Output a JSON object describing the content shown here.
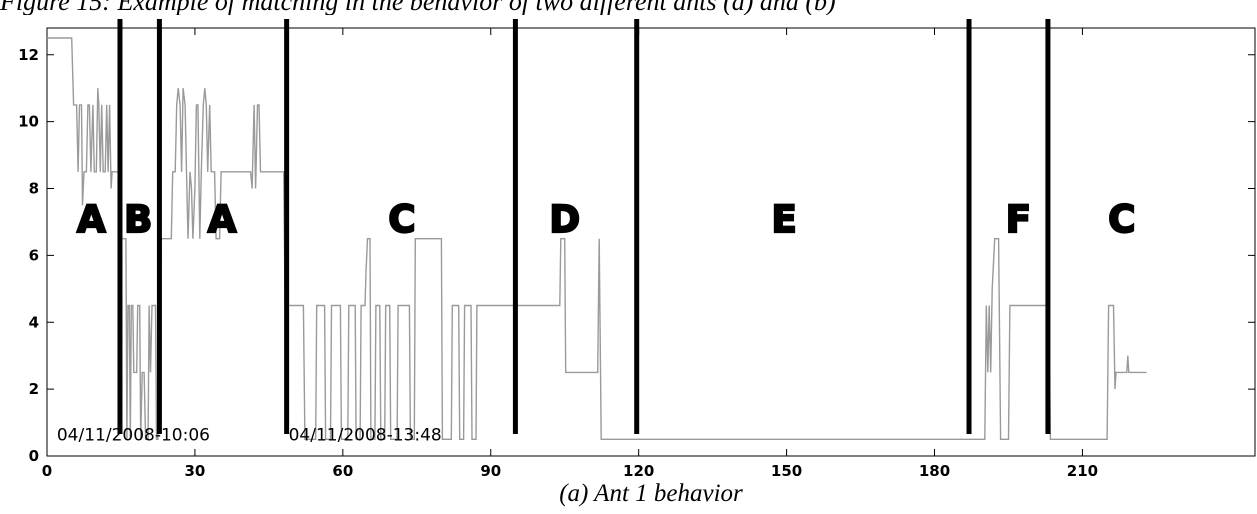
{
  "figure_caption": "Figure 15: Example of matching in the behavior of two different ants (a) and (b)",
  "subcaption": "(a) Ant 1 behavior",
  "chart_data": {
    "type": "line",
    "title": "",
    "xlabel": "",
    "ylabel": "",
    "xlim": [
      0,
      245
    ],
    "ylim": [
      0,
      12.8
    ],
    "xticks": [
      0,
      30,
      60,
      90,
      120,
      150,
      180,
      210
    ],
    "yticks": [
      0,
      2,
      4,
      6,
      8,
      10,
      12
    ],
    "grid": false,
    "line_color": "#9a9a9a",
    "divider_color": "#000000",
    "series": [
      {
        "points": [
          [
            0,
            12.5
          ],
          [
            5,
            12.5
          ],
          [
            5.4,
            10.5
          ],
          [
            6,
            10.5
          ],
          [
            6.3,
            8.5
          ],
          [
            6.6,
            10.5
          ],
          [
            7,
            10.5
          ],
          [
            7.2,
            7.5
          ],
          [
            7.5,
            8.5
          ],
          [
            8,
            8.5
          ],
          [
            8.3,
            10.5
          ],
          [
            8.6,
            10.5
          ],
          [
            8.9,
            8.5
          ],
          [
            9.3,
            10.5
          ],
          [
            9.6,
            8.5
          ],
          [
            10,
            8.5
          ],
          [
            10.3,
            11
          ],
          [
            10.5,
            10.5
          ],
          [
            10.8,
            8.5
          ],
          [
            11.1,
            10.5
          ],
          [
            11.4,
            8.5
          ],
          [
            11.8,
            8.5
          ],
          [
            12.1,
            10.5
          ],
          [
            12.4,
            8.5
          ],
          [
            12.7,
            10.5
          ],
          [
            13,
            8
          ],
          [
            13.2,
            8.5
          ],
          [
            14.7,
            8.5
          ],
          [
            15,
            6.5
          ],
          [
            16,
            6.5
          ],
          [
            16.2,
            0.5
          ],
          [
            16.4,
            4.5
          ],
          [
            16.7,
            4.5
          ],
          [
            16.9,
            0.5
          ],
          [
            17.1,
            4.5
          ],
          [
            17.4,
            4.5
          ],
          [
            17.6,
            2.5
          ],
          [
            18.2,
            2.5
          ],
          [
            18.4,
            4.5
          ],
          [
            18.8,
            4.5
          ],
          [
            19,
            0.5
          ],
          [
            19.3,
            2.5
          ],
          [
            19.7,
            2.5
          ],
          [
            20,
            0.5
          ],
          [
            20.5,
            0.5
          ],
          [
            20.7,
            4.5
          ],
          [
            21,
            2.5
          ],
          [
            21.3,
            4.5
          ],
          [
            22,
            4.5
          ],
          [
            22.2,
            0.5
          ],
          [
            22.5,
            0.5
          ],
          [
            22.7,
            4.5
          ],
          [
            23,
            4.5
          ],
          [
            23.2,
            6.5
          ],
          [
            25.2,
            6.5
          ],
          [
            25.5,
            8.5
          ],
          [
            26,
            8.5
          ],
          [
            26.3,
            10.5
          ],
          [
            26.6,
            11
          ],
          [
            27,
            10.5
          ],
          [
            27.3,
            8.5
          ],
          [
            27.6,
            11
          ],
          [
            28,
            10.5
          ],
          [
            28.3,
            8.5
          ],
          [
            28.6,
            6.5
          ],
          [
            29,
            8.5
          ],
          [
            29.3,
            8
          ],
          [
            29.6,
            6.5
          ],
          [
            30,
            8
          ],
          [
            30.3,
            10.5
          ],
          [
            30.6,
            10.5
          ],
          [
            31,
            6.5
          ],
          [
            31.3,
            8.5
          ],
          [
            31.7,
            10.5
          ],
          [
            32,
            11
          ],
          [
            32.3,
            10.5
          ],
          [
            32.6,
            8.5
          ],
          [
            33,
            10.5
          ],
          [
            33.3,
            8.5
          ],
          [
            34,
            8.5
          ],
          [
            34.3,
            6.5
          ],
          [
            35,
            6.5
          ],
          [
            35.3,
            8.5
          ],
          [
            41.3,
            8.5
          ],
          [
            41.6,
            8
          ],
          [
            42,
            10.5
          ],
          [
            42.3,
            8
          ],
          [
            42.7,
            10.5
          ],
          [
            43,
            10.5
          ],
          [
            43.3,
            8.5
          ],
          [
            48,
            8.5
          ],
          [
            48.3,
            4.5
          ],
          [
            52,
            4.5
          ],
          [
            52.3,
            0.5
          ],
          [
            54.5,
            0.5
          ],
          [
            54.7,
            4.5
          ],
          [
            56.3,
            4.5
          ],
          [
            56.5,
            0.5
          ],
          [
            57.5,
            0.5
          ],
          [
            57.7,
            4.5
          ],
          [
            59.5,
            4.5
          ],
          [
            59.7,
            0.5
          ],
          [
            61,
            0.5
          ],
          [
            61.2,
            4.5
          ],
          [
            62.5,
            4.5
          ],
          [
            62.7,
            0.5
          ],
          [
            63.5,
            0.5
          ],
          [
            63.7,
            4.5
          ],
          [
            64.5,
            4.5
          ],
          [
            64.7,
            5.5
          ],
          [
            65,
            6.5
          ],
          [
            65.5,
            6.5
          ],
          [
            65.7,
            0.5
          ],
          [
            66.5,
            0.5
          ],
          [
            66.7,
            4.5
          ],
          [
            67.5,
            4.5
          ],
          [
            67.7,
            0.5
          ],
          [
            68.5,
            0.5
          ],
          [
            68.7,
            4.5
          ],
          [
            69.5,
            4.5
          ],
          [
            69.7,
            0.5
          ],
          [
            71,
            0.5
          ],
          [
            71.2,
            4.5
          ],
          [
            73.5,
            4.5
          ],
          [
            73.7,
            0.5
          ],
          [
            74.5,
            0.5
          ],
          [
            74.7,
            6.5
          ],
          [
            80,
            6.5
          ],
          [
            80.2,
            0.5
          ],
          [
            82,
            0.5
          ],
          [
            82.2,
            4.5
          ],
          [
            83.5,
            4.5
          ],
          [
            83.7,
            0.5
          ],
          [
            84.5,
            0.5
          ],
          [
            84.7,
            4.5
          ],
          [
            86,
            4.5
          ],
          [
            86.2,
            0.5
          ],
          [
            87,
            0.5
          ],
          [
            87.2,
            4.5
          ],
          [
            104,
            4.5
          ],
          [
            104.2,
            6.5
          ],
          [
            105,
            6.5
          ],
          [
            105.2,
            2.5
          ],
          [
            111.7,
            2.5
          ],
          [
            112,
            6.5
          ],
          [
            112.4,
            0.5
          ],
          [
            190.2,
            0.5
          ],
          [
            190.5,
            4.5
          ],
          [
            190.8,
            2.5
          ],
          [
            191.1,
            4.5
          ],
          [
            191.4,
            2.5
          ],
          [
            191.7,
            5
          ],
          [
            192.2,
            6.5
          ],
          [
            193,
            6.5
          ],
          [
            193.4,
            0.5
          ],
          [
            195,
            0.5
          ],
          [
            195.3,
            4.5
          ],
          [
            203.2,
            4.5
          ],
          [
            203.5,
            0.5
          ],
          [
            215,
            0.5
          ],
          [
            215.3,
            4.5
          ],
          [
            216.3,
            4.5
          ],
          [
            216.6,
            2
          ],
          [
            216.8,
            2.5
          ],
          [
            219,
            2.5
          ],
          [
            219.2,
            3
          ],
          [
            219.4,
            2.5
          ],
          [
            223,
            2.5
          ]
        ]
      }
    ],
    "dividers": [
      14.8,
      22.8,
      48.6,
      95,
      119.6,
      187,
      203
    ],
    "segment_labels": [
      {
        "text": "A",
        "x": 9,
        "y": 6.7
      },
      {
        "text": "B",
        "x": 18.5,
        "y": 6.7
      },
      {
        "text": "A",
        "x": 35.5,
        "y": 6.7
      },
      {
        "text": "C",
        "x": 72,
        "y": 6.7
      },
      {
        "text": "D",
        "x": 105,
        "y": 6.7
      },
      {
        "text": "E",
        "x": 149.5,
        "y": 6.7
      },
      {
        "text": "F",
        "x": 197,
        "y": 6.7
      },
      {
        "text": "C",
        "x": 218,
        "y": 6.7
      }
    ],
    "annotations": [
      {
        "text": "04/11/2008-10:06",
        "x": 2,
        "y": 0.4
      },
      {
        "text": "04/11/2008-13:48",
        "x": 49,
        "y": 0.4
      }
    ]
  }
}
